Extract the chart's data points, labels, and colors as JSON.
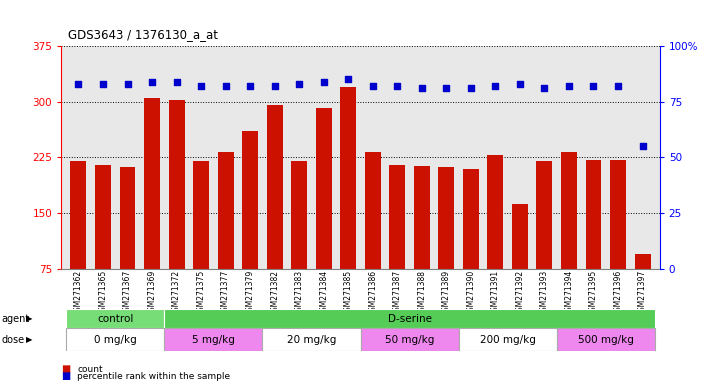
{
  "title": "GDS3643 / 1376130_a_at",
  "samples": [
    "GSM271362",
    "GSM271365",
    "GSM271367",
    "GSM271369",
    "GSM271372",
    "GSM271375",
    "GSM271377",
    "GSM271379",
    "GSM271382",
    "GSM271383",
    "GSM271384",
    "GSM271385",
    "GSM271386",
    "GSM271387",
    "GSM271388",
    "GSM271389",
    "GSM271390",
    "GSM271391",
    "GSM271392",
    "GSM271393",
    "GSM271394",
    "GSM271395",
    "GSM271396",
    "GSM271397"
  ],
  "counts": [
    220,
    215,
    212,
    305,
    302,
    220,
    232,
    260,
    295,
    220,
    292,
    320,
    232,
    215,
    213,
    212,
    210,
    228,
    162,
    220,
    232,
    222,
    222,
    95
  ],
  "percentiles": [
    83,
    83,
    83,
    84,
    84,
    82,
    82,
    82,
    82,
    83,
    84,
    85,
    82,
    82,
    81,
    81,
    81,
    82,
    83,
    81,
    82,
    82,
    82,
    55
  ],
  "ylim_left": [
    75,
    375
  ],
  "ylim_right": [
    0,
    100
  ],
  "yticks_left": [
    75,
    150,
    225,
    300,
    375
  ],
  "yticks_right": [
    0,
    25,
    50,
    75,
    100
  ],
  "bar_color": "#cc1100",
  "dot_color": "#0000cc",
  "agent_groups": [
    {
      "label": "control",
      "start": 0,
      "end": 4,
      "color": "#77dd77"
    },
    {
      "label": "D-serine",
      "start": 4,
      "end": 24,
      "color": "#55cc55"
    }
  ],
  "dose_groups": [
    {
      "label": "0 mg/kg",
      "start": 0,
      "end": 4,
      "color": "#ffffff"
    },
    {
      "label": "5 mg/kg",
      "start": 4,
      "end": 8,
      "color": "#ee88ee"
    },
    {
      "label": "20 mg/kg",
      "start": 8,
      "end": 12,
      "color": "#ffffff"
    },
    {
      "label": "50 mg/kg",
      "start": 12,
      "end": 16,
      "color": "#ee88ee"
    },
    {
      "label": "200 mg/kg",
      "start": 16,
      "end": 20,
      "color": "#ffffff"
    },
    {
      "label": "500 mg/kg",
      "start": 20,
      "end": 24,
      "color": "#ee88ee"
    }
  ],
  "legend_count_label": "count",
  "legend_pct_label": "percentile rank within the sample",
  "plot_bg": "#e8e8e8",
  "fig_bg": "#ffffff"
}
